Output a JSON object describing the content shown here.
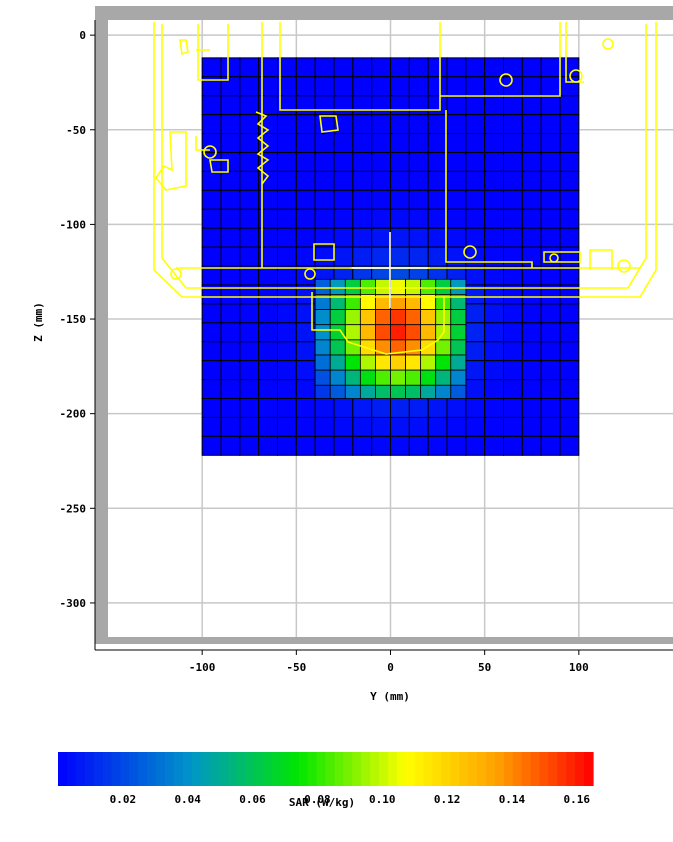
{
  "chart_data": {
    "type": "heatmap",
    "title": "",
    "xlabel": "Y  (mm)",
    "ylabel": "Z  (mm)",
    "xlim": [
      -150,
      150
    ],
    "ylim": [
      -318,
      8
    ],
    "xticks": [
      -100,
      -50,
      0,
      50,
      100
    ],
    "yticks": [
      0,
      -50,
      -100,
      -150,
      -200,
      -250,
      -300
    ],
    "grid": true,
    "area_scan": {
      "y_range": [
        -100,
        100
      ],
      "z_range": [
        -222,
        -12
      ],
      "step": 10
    },
    "zoom_scan": {
      "y_range": [
        -40,
        40
      ],
      "z_range": [
        -192,
        -129
      ],
      "step": 8
    },
    "peak": {
      "y": 4,
      "z": -155,
      "value": 0.16
    },
    "colorbar": {
      "label": "SAR  (W/kg)",
      "min": 0.0,
      "max": 0.165,
      "ticks": [
        "0.02",
        "0.04",
        "0.06",
        "0.08",
        "0.10",
        "0.12",
        "0.14",
        "0.16"
      ],
      "tick_values": [
        0.02,
        0.04,
        0.06,
        0.08,
        0.1,
        0.12,
        0.14,
        0.16
      ]
    },
    "colors": {
      "outline": "#ffff00",
      "frame": "#a8a8a8",
      "grid": "#c8c8c8",
      "mesh": "#000000",
      "probe": "#ffffff"
    }
  }
}
